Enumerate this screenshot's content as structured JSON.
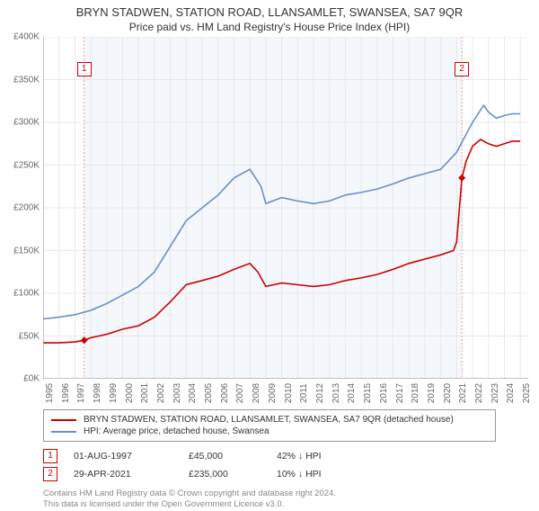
{
  "title_line1": "BRYN STADWEN, STATION ROAD, LLANSAMLET, SWANSEA, SA7 9QR",
  "title_line2": "Price paid vs. HM Land Registry's House Price Index (HPI)",
  "chart": {
    "type": "line",
    "background_color": "#ffffff",
    "grid_color": "#e8e8e8",
    "axis_color": "#888888",
    "band_color": "#f4f7fb",
    "x_min": 1995,
    "x_max": 2025.5,
    "x_ticks": [
      1995,
      1996,
      1997,
      1998,
      1999,
      2000,
      2001,
      2002,
      2003,
      2004,
      2005,
      2006,
      2007,
      2008,
      2009,
      2010,
      2011,
      2012,
      2013,
      2014,
      2015,
      2016,
      2017,
      2018,
      2019,
      2020,
      2021,
      2022,
      2023,
      2024,
      2025
    ],
    "y_min": 0,
    "y_max": 400000,
    "y_ticks": [
      0,
      50000,
      100000,
      150000,
      200000,
      250000,
      300000,
      350000,
      400000
    ],
    "y_tick_labels": [
      "£0K",
      "£50K",
      "£100K",
      "£150K",
      "£200K",
      "£250K",
      "£300K",
      "£350K",
      "£400K"
    ],
    "label_fontsize": 10,
    "label_color": "#666666",
    "series_property": {
      "color": "#cc0000",
      "width": 1.6,
      "data": [
        [
          1995,
          42000
        ],
        [
          1996,
          42000
        ],
        [
          1997,
          43000
        ],
        [
          1997.58,
          45000
        ],
        [
          1998,
          48000
        ],
        [
          1999,
          52000
        ],
        [
          2000,
          58000
        ],
        [
          2001,
          62000
        ],
        [
          2002,
          72000
        ],
        [
          2003,
          90000
        ],
        [
          2004,
          110000
        ],
        [
          2005,
          115000
        ],
        [
          2006,
          120000
        ],
        [
          2007,
          128000
        ],
        [
          2008,
          135000
        ],
        [
          2008.5,
          125000
        ],
        [
          2009,
          108000
        ],
        [
          2010,
          112000
        ],
        [
          2011,
          110000
        ],
        [
          2012,
          108000
        ],
        [
          2013,
          110000
        ],
        [
          2014,
          115000
        ],
        [
          2015,
          118000
        ],
        [
          2016,
          122000
        ],
        [
          2017,
          128000
        ],
        [
          2018,
          135000
        ],
        [
          2019,
          140000
        ],
        [
          2020,
          145000
        ],
        [
          2020.8,
          150000
        ],
        [
          2021,
          160000
        ],
        [
          2021.33,
          235000
        ],
        [
          2021.6,
          255000
        ],
        [
          2022,
          272000
        ],
        [
          2022.5,
          280000
        ],
        [
          2023,
          275000
        ],
        [
          2023.5,
          272000
        ],
        [
          2024,
          275000
        ],
        [
          2024.5,
          278000
        ],
        [
          2025,
          278000
        ]
      ]
    },
    "series_hpi": {
      "color": "#6a8fc7",
      "width": 1.6,
      "data": [
        [
          1995,
          70000
        ],
        [
          1996,
          72000
        ],
        [
          1997,
          75000
        ],
        [
          1998,
          80000
        ],
        [
          1999,
          88000
        ],
        [
          2000,
          98000
        ],
        [
          2001,
          108000
        ],
        [
          2002,
          125000
        ],
        [
          2003,
          155000
        ],
        [
          2004,
          185000
        ],
        [
          2005,
          200000
        ],
        [
          2006,
          215000
        ],
        [
          2007,
          235000
        ],
        [
          2008,
          245000
        ],
        [
          2008.7,
          225000
        ],
        [
          2009,
          205000
        ],
        [
          2010,
          212000
        ],
        [
          2011,
          208000
        ],
        [
          2012,
          205000
        ],
        [
          2013,
          208000
        ],
        [
          2014,
          215000
        ],
        [
          2015,
          218000
        ],
        [
          2016,
          222000
        ],
        [
          2017,
          228000
        ],
        [
          2018,
          235000
        ],
        [
          2019,
          240000
        ],
        [
          2020,
          245000
        ],
        [
          2021,
          265000
        ],
        [
          2022,
          300000
        ],
        [
          2022.7,
          320000
        ],
        [
          2023,
          312000
        ],
        [
          2023.5,
          305000
        ],
        [
          2024,
          308000
        ],
        [
          2024.5,
          310000
        ],
        [
          2025,
          310000
        ]
      ]
    },
    "sale_markers": [
      {
        "n": 1,
        "x": 1997.58,
        "y": 45000
      },
      {
        "n": 2,
        "x": 2021.33,
        "y": 235000
      }
    ],
    "sale_marker_fill": "#cc0000",
    "sale_marker_box_border": "#cc0000",
    "sale_vline_color": "#d9a3a3"
  },
  "legend": {
    "border_color": "#999999",
    "items": [
      {
        "color": "#cc0000",
        "label": "BRYN STADWEN, STATION ROAD, LLANSAMLET, SWANSEA, SA7 9QR (detached house)"
      },
      {
        "color": "#6a8fc7",
        "label": "HPI: Average price, detached house, Swansea"
      }
    ]
  },
  "sales": [
    {
      "n": "1",
      "date": "01-AUG-1997",
      "price": "£45,000",
      "pct": "42% ↓ HPI"
    },
    {
      "n": "2",
      "date": "29-APR-2021",
      "price": "£235,000",
      "pct": "10% ↓ HPI"
    }
  ],
  "footer_line1": "Contains HM Land Registry data © Crown copyright and database right 2024.",
  "footer_line2": "This data is licensed under the Open Government Licence v3.0."
}
